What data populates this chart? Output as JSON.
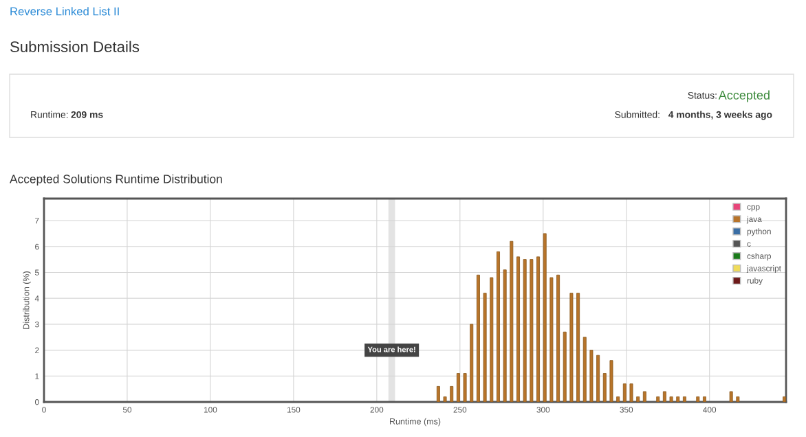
{
  "chart_data": {
    "type": "bar",
    "title": "Accepted Solutions Runtime Distribution",
    "xlabel": "Runtime (ms)",
    "ylabel": "Distribution (%)",
    "annotations": [
      "Reverse Linked List II",
      "Submission Details",
      "Status:",
      "Accepted",
      "Runtime:",
      "209 ms",
      "Submitted:",
      "4 months, 3 weeks ago"
    ],
    "x": [
      237,
      241,
      245,
      249,
      253,
      257,
      261,
      265,
      269,
      273,
      277,
      281,
      285,
      289,
      293,
      297,
      301,
      305,
      309,
      313,
      317,
      321,
      325,
      329,
      333,
      337,
      341,
      345,
      349,
      353,
      357,
      361,
      369,
      373,
      377,
      381,
      385,
      393,
      397,
      413,
      417,
      445
    ],
    "series": [
      {
        "name": "cpp",
        "color": "#e8457a",
        "values": [
          null,
          null,
          null,
          null,
          null,
          null,
          null,
          null,
          null,
          null,
          null,
          null,
          null,
          null,
          null,
          null,
          null,
          null,
          null,
          null,
          null,
          null,
          null,
          null,
          null,
          null,
          null,
          null,
          null,
          null,
          null,
          null,
          null,
          null,
          null,
          null,
          null,
          null,
          null,
          null,
          null,
          null
        ]
      },
      {
        "name": "java",
        "color": "#b8742a",
        "values": [
          0.6,
          0.2,
          0.6,
          1.1,
          1.1,
          3.0,
          4.9,
          4.2,
          4.8,
          5.8,
          5.1,
          6.2,
          5.6,
          5.5,
          5.5,
          5.6,
          6.5,
          4.8,
          4.9,
          2.7,
          4.2,
          4.2,
          2.5,
          2.0,
          1.8,
          1.1,
          1.6,
          0.2,
          0.7,
          0.7,
          0.2,
          0.4,
          0.2,
          0.4,
          0.2,
          0.2,
          0.2,
          0.2,
          0.2,
          0.4,
          0.2,
          0.2
        ]
      },
      {
        "name": "python",
        "color": "#3a6ea5",
        "values": [
          null,
          null,
          null,
          null,
          null,
          null,
          null,
          null,
          null,
          null,
          null,
          null,
          null,
          null,
          null,
          null,
          null,
          null,
          null,
          null,
          null,
          null,
          null,
          null,
          null,
          null,
          null,
          null,
          null,
          null,
          null,
          null,
          null,
          null,
          null,
          null,
          null,
          null,
          null,
          null,
          null,
          null
        ]
      },
      {
        "name": "c",
        "color": "#555555",
        "values": [
          null,
          null,
          null,
          null,
          null,
          null,
          null,
          null,
          null,
          null,
          null,
          null,
          null,
          null,
          null,
          null,
          null,
          null,
          null,
          null,
          null,
          null,
          null,
          null,
          null,
          null,
          null,
          null,
          null,
          null,
          null,
          null,
          null,
          null,
          null,
          null,
          null,
          null,
          null,
          null,
          null,
          null
        ]
      },
      {
        "name": "csharp",
        "color": "#1a7a1a",
        "values": [
          null,
          null,
          null,
          null,
          null,
          null,
          null,
          null,
          null,
          null,
          null,
          null,
          null,
          null,
          null,
          null,
          null,
          null,
          null,
          null,
          null,
          null,
          null,
          null,
          null,
          null,
          null,
          null,
          null,
          null,
          null,
          null,
          null,
          null,
          null,
          null,
          null,
          null,
          null,
          null,
          null,
          null
        ]
      },
      {
        "name": "javascript",
        "color": "#f0dc5a",
        "values": [
          null,
          null,
          null,
          null,
          null,
          null,
          null,
          null,
          null,
          null,
          null,
          null,
          null,
          null,
          null,
          null,
          null,
          null,
          null,
          null,
          null,
          null,
          null,
          null,
          null,
          null,
          null,
          null,
          null,
          null,
          null,
          null,
          null,
          null,
          null,
          null,
          null,
          null,
          null,
          null,
          null,
          null
        ]
      },
      {
        "name": "ruby",
        "color": "#6e1a1a",
        "values": [
          null,
          null,
          null,
          null,
          null,
          null,
          null,
          null,
          null,
          null,
          null,
          null,
          null,
          null,
          null,
          null,
          null,
          null,
          null,
          null,
          null,
          null,
          null,
          null,
          null,
          null,
          null,
          null,
          null,
          null,
          null,
          null,
          null,
          null,
          null,
          null,
          null,
          null,
          null,
          null,
          null,
          null
        ]
      }
    ],
    "xlim": [
      0,
      446
    ],
    "xticks": [
      0,
      50,
      100,
      150,
      200,
      250,
      300,
      350,
      400
    ],
    "ylim": [
      0,
      7.85
    ],
    "yticks": [
      0,
      1,
      2,
      3,
      4,
      5,
      6,
      7
    ],
    "bands": [
      {
        "axis": "x",
        "from": 207,
        "to": 211,
        "label": "You are here!",
        "color": "#e3e3e3"
      }
    ],
    "grid": true,
    "legend": "top right"
  }
}
